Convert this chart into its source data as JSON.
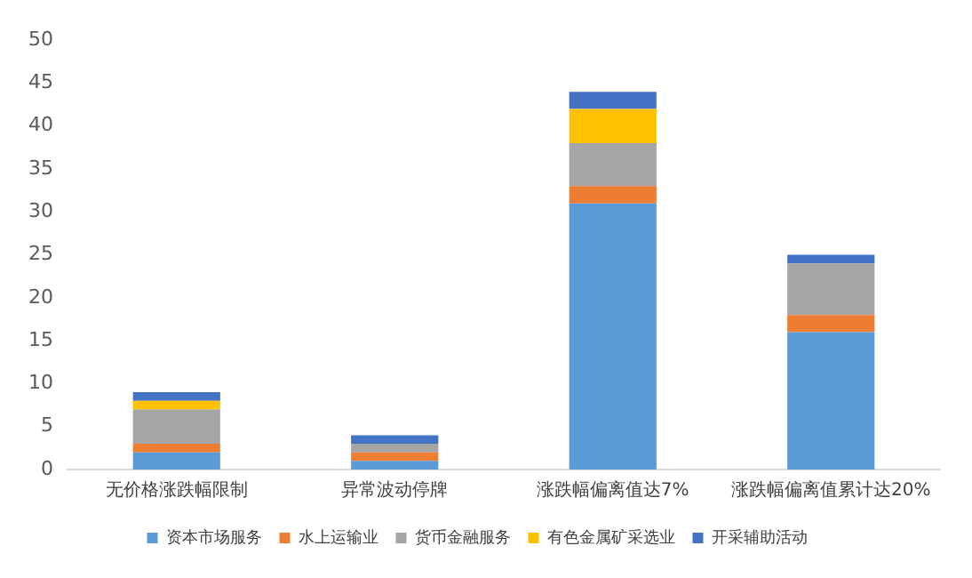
{
  "chart_data": {
    "type": "bar",
    "stacked": true,
    "categories": [
      "无价格涨跌幅限制",
      "异常波动停牌",
      "涨跌幅偏离值达7%",
      "涨跌幅偏离值累计达20%"
    ],
    "series": [
      {
        "name": "资本市场服务",
        "color": "#5b9bd5",
        "values": [
          2,
          1,
          31,
          16
        ]
      },
      {
        "name": "水上运输业",
        "color": "#ed7d31",
        "values": [
          1,
          1,
          2,
          2
        ]
      },
      {
        "name": "货币金融服务",
        "color": "#a5a5a5",
        "values": [
          4,
          1,
          5,
          6
        ]
      },
      {
        "name": "有色金属矿采选业",
        "color": "#ffc000",
        "values": [
          1,
          0,
          4,
          0
        ]
      },
      {
        "name": "开采辅助活动",
        "color": "#4472c4",
        "values": [
          1,
          1,
          2,
          1
        ]
      }
    ],
    "ylim": [
      0,
      50
    ],
    "yticks": [
      0,
      5,
      10,
      15,
      20,
      25,
      30,
      35,
      40,
      45,
      50
    ],
    "grid": false,
    "legend": "bottom"
  }
}
